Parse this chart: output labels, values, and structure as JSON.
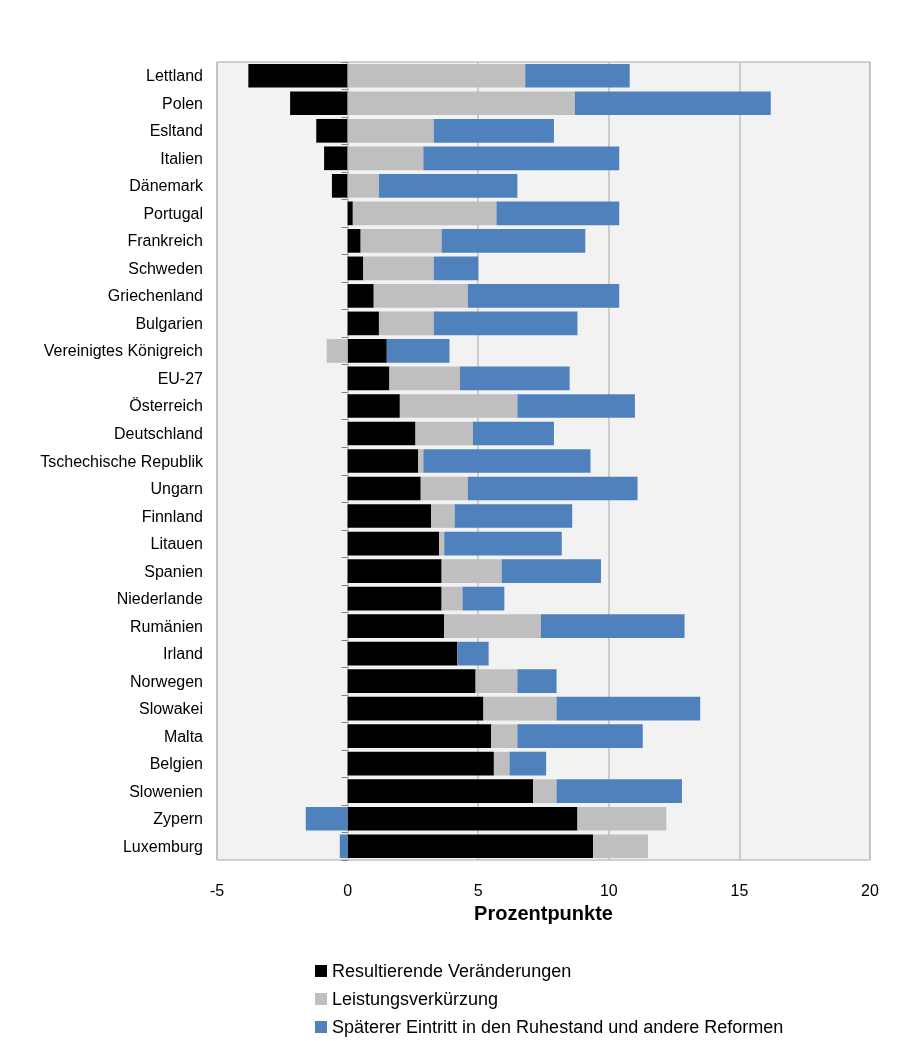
{
  "chart_data": {
    "type": "bar",
    "orientation": "horizontal",
    "stacked": true,
    "xlabel": "Prozentpunkte",
    "categories": [
      "Lettland",
      "Polen",
      "Esltand",
      "Italien",
      "Dänemark",
      "Portugal",
      "Frankreich",
      "Schweden",
      "Griechenland",
      "Bulgarien",
      "Vereinigtes Königreich",
      "EU-27",
      "Österreich",
      "Deutschland",
      "Tschechische Republik",
      "Ungarn",
      "Finnland",
      "Litauen",
      "Spanien",
      "Niederlande",
      "Rumänien",
      "Irland",
      "Norwegen",
      "Slowakei",
      "Malta",
      "Belgien",
      "Slowenien",
      "Zypern",
      "Luxemburg"
    ],
    "series": [
      {
        "name": "Resultierende Veränderungen",
        "color": "#000000",
        "values": [
          -3.8,
          -2.2,
          -1.2,
          -0.9,
          -0.6,
          0.2,
          0.5,
          0.6,
          1.0,
          1.2,
          1.5,
          1.6,
          2.0,
          2.6,
          2.7,
          2.8,
          3.2,
          3.5,
          3.6,
          3.6,
          3.7,
          4.2,
          4.9,
          5.2,
          5.5,
          5.6,
          7.1,
          8.8,
          9.4
        ]
      },
      {
        "name": "Leistungsverkürzung",
        "color": "#bfbfbf",
        "values": [
          6.8,
          8.7,
          3.3,
          2.9,
          1.2,
          5.5,
          3.1,
          2.7,
          3.6,
          2.1,
          -0.8,
          2.7,
          4.5,
          2.2,
          0.2,
          1.8,
          0.9,
          0.2,
          2.3,
          0.8,
          3.7,
          0,
          1.6,
          2.8,
          1.0,
          0.6,
          0.9,
          3.4,
          2.1
        ]
      },
      {
        "name": "Späterer Eintritt in den Ruhestand und andere Reformen",
        "color": "#4f81bd",
        "values": [
          4.0,
          7.5,
          4.6,
          7.5,
          5.3,
          4.7,
          5.5,
          1.7,
          5.8,
          5.5,
          2.4,
          4.2,
          4.5,
          3.1,
          6.4,
          6.5,
          4.5,
          4.5,
          3.8,
          1.6,
          5.5,
          1.2,
          1.5,
          5.5,
          4.8,
          1.4,
          4.8,
          -1.6,
          -0.3
        ]
      }
    ],
    "xlim": [
      -5,
      20
    ],
    "xticks": [
      -5,
      0,
      5,
      10,
      15,
      20
    ],
    "grid": "x",
    "legend": "bottom"
  }
}
